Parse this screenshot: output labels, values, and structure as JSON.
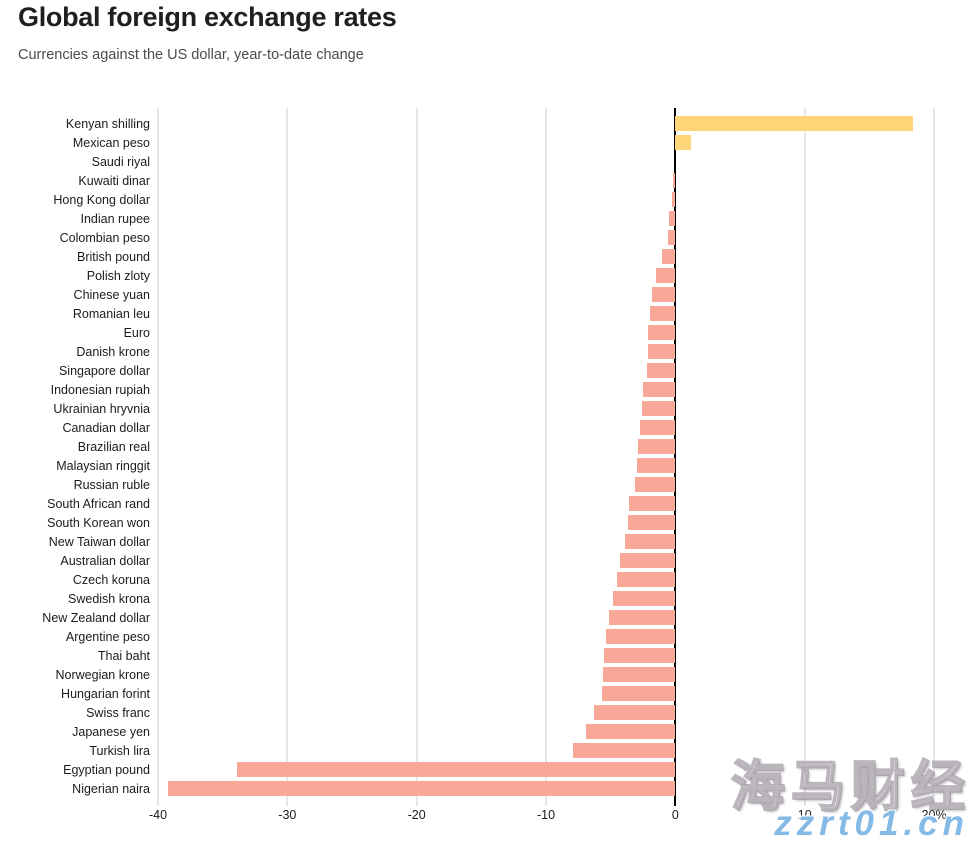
{
  "header": {
    "title": "Global foreign exchange rates",
    "subtitle": "Currencies against the US dollar, year-to-date change"
  },
  "chart_data": {
    "type": "bar",
    "orientation": "horizontal",
    "title": "Global foreign exchange rates",
    "subtitle": "Currencies against the US dollar, year-to-date change",
    "unit": "percent",
    "categories": [
      "Kenyan shilling",
      "Mexican peso",
      "Saudi riyal",
      "Kuwaiti dinar",
      "Hong Kong dollar",
      "Indian rupee",
      "Colombian peso",
      "British pound",
      "Polish zloty",
      "Chinese yuan",
      "Romanian leu",
      "Euro",
      "Danish krone",
      "Singapore dollar",
      "Indonesian rupiah",
      "Ukrainian hryvnia",
      "Canadian dollar",
      "Brazilian real",
      "Malaysian ringgit",
      "Russian ruble",
      "South African rand",
      "South Korean won",
      "New Taiwan dollar",
      "Australian dollar",
      "Czech koruna",
      "Swedish krona",
      "New Zealand dollar",
      "Argentine peso",
      "Thai baht",
      "Norwegian krone",
      "Hungarian forint",
      "Swiss franc",
      "Japanese yen",
      "Turkish lira",
      "Egyptian pound",
      "Nigerian naira"
    ],
    "values": [
      18.4,
      1.2,
      0,
      -0.2,
      -0.3,
      -0.5,
      -0.6,
      -1.0,
      -1.5,
      -1.8,
      -2.0,
      -2.1,
      -2.1,
      -2.2,
      -2.5,
      -2.6,
      -2.7,
      -2.9,
      -3.0,
      -3.1,
      -3.6,
      -3.7,
      -3.9,
      -4.3,
      -4.5,
      -4.8,
      -5.1,
      -5.4,
      -5.5,
      -5.6,
      -5.7,
      -6.3,
      -6.9,
      -7.9,
      -33.9,
      -39.2
    ],
    "axis": {
      "min": -40,
      "max": 22.7,
      "ticks": [
        -40,
        -30,
        -20,
        -10,
        0,
        10,
        20
      ],
      "tick_labels": [
        "-40",
        "-30",
        "-20",
        "-10",
        "0",
        "10",
        "20%"
      ],
      "grid": true,
      "zero_line": true
    },
    "colors": {
      "positive": "#FFD577",
      "negative": "#F7A896",
      "gridline": "#CCCCCC",
      "zero_line": "#000000"
    },
    "legend": null
  },
  "watermarks": {
    "brand_cn": "海马财经",
    "site_url": "zzrt01.cn"
  }
}
